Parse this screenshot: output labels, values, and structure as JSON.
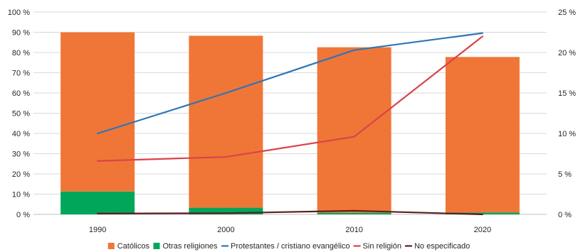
{
  "chart_data": {
    "type": "bar",
    "categories": [
      "1990",
      "2000",
      "2010",
      "2020"
    ],
    "left_axis": {
      "ylim": [
        0,
        100
      ],
      "ticks": [
        "0 %",
        "10 %",
        "20 %",
        "30 %",
        "40 %",
        "50 %",
        "60 %",
        "70 %",
        "80 %",
        "90 %",
        "100 %"
      ]
    },
    "right_axis": {
      "ylim": [
        0,
        25
      ],
      "ticks": [
        "0 %",
        "5 %",
        "10 %",
        "15 %",
        "20 %",
        "25 %"
      ]
    },
    "grid": true,
    "legend_position": "bottom",
    "series": [
      {
        "name": "Católicos",
        "kind": "bar-stack",
        "axis": "left",
        "color": "#f07637",
        "values": [
          78.7,
          85.0,
          81.8,
          76.9
        ]
      },
      {
        "name": "Otras religiones",
        "kind": "bar-stack",
        "axis": "left",
        "color": "#00a65a",
        "values": [
          11.3,
          3.3,
          0.8,
          0.9
        ]
      },
      {
        "name": "Protestantes / cristiano evangélico",
        "kind": "line",
        "axis": "right",
        "color": "#2e75b6",
        "values": [
          10.0,
          15.0,
          20.3,
          22.4
        ]
      },
      {
        "name": "Sin religión",
        "kind": "line",
        "axis": "right",
        "color": "#d9434b",
        "values": [
          6.6,
          7.1,
          9.6,
          22.0
        ]
      },
      {
        "name": "No especificado",
        "kind": "line",
        "axis": "right",
        "color": "#5a1f1f",
        "values": [
          0.1,
          0.15,
          0.45,
          0.0
        ]
      }
    ]
  }
}
